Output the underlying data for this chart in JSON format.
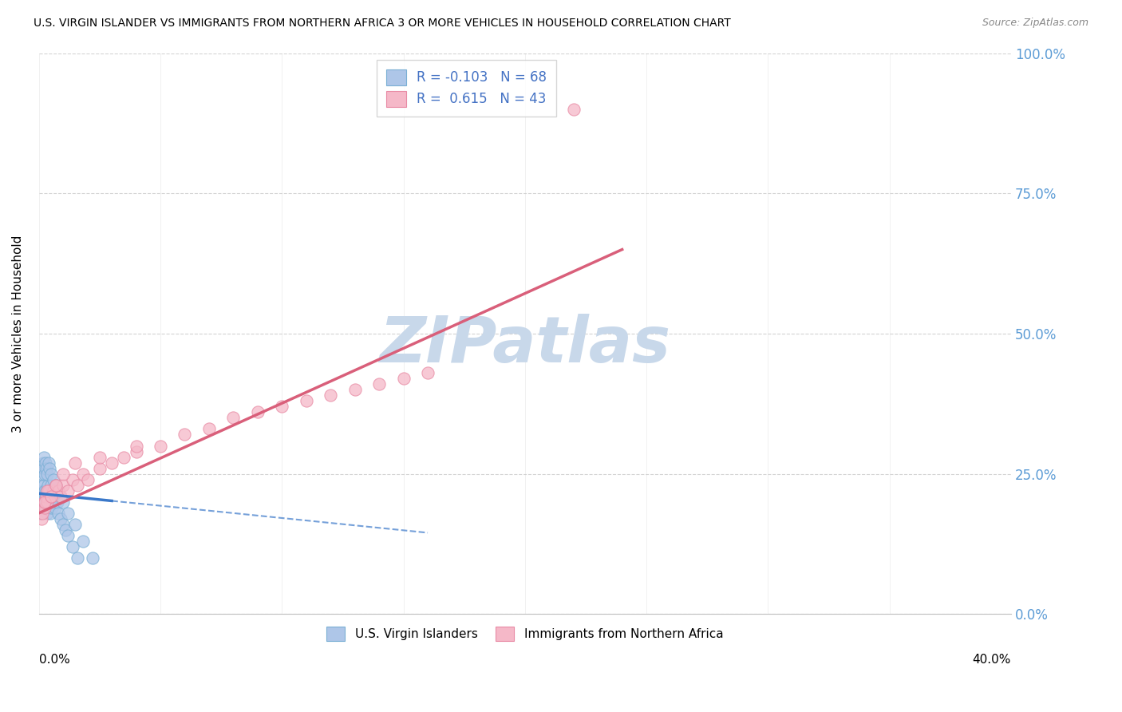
{
  "title": "U.S. VIRGIN ISLANDER VS IMMIGRANTS FROM NORTHERN AFRICA 3 OR MORE VEHICLES IN HOUSEHOLD CORRELATION CHART",
  "source": "Source: ZipAtlas.com",
  "ylabel_label": "3 or more Vehicles in Household",
  "legend_labels": [
    "U.S. Virgin Islanders",
    "Immigrants from Northern Africa"
  ],
  "R_blue": -0.103,
  "N_blue": 68,
  "R_pink": 0.615,
  "N_pink": 43,
  "blue_color": "#aec6e8",
  "pink_color": "#f5b8c8",
  "blue_edge": "#7aafd4",
  "pink_edge": "#e88aa4",
  "trend_blue_color": "#3a78c9",
  "trend_pink_color": "#d95f7a",
  "watermark": "ZIPatlas",
  "watermark_color": "#c8d8ea",
  "xmin": 0.0,
  "xmax": 40.0,
  "ymin": 0.0,
  "ymax": 100.0,
  "blue_x": [
    0.05,
    0.08,
    0.1,
    0.12,
    0.15,
    0.15,
    0.18,
    0.2,
    0.2,
    0.22,
    0.22,
    0.25,
    0.25,
    0.28,
    0.28,
    0.3,
    0.3,
    0.32,
    0.32,
    0.35,
    0.35,
    0.38,
    0.38,
    0.4,
    0.4,
    0.42,
    0.42,
    0.45,
    0.45,
    0.48,
    0.48,
    0.5,
    0.5,
    0.52,
    0.55,
    0.55,
    0.58,
    0.6,
    0.65,
    0.7,
    0.75,
    0.8,
    0.9,
    1.0,
    1.1,
    1.2,
    1.4,
    1.6,
    0.15,
    0.18,
    0.2,
    0.22,
    0.25,
    0.28,
    0.3,
    0.35,
    0.4,
    0.45,
    0.5,
    0.6,
    0.7,
    0.8,
    0.9,
    1.0,
    1.2,
    1.5,
    1.8,
    2.2
  ],
  "blue_y": [
    18,
    20,
    22,
    19,
    21,
    23,
    20,
    22,
    19,
    21,
    23,
    20,
    22,
    19,
    21,
    20,
    22,
    19,
    21,
    20,
    18,
    21,
    23,
    19,
    22,
    20,
    21,
    19,
    22,
    20,
    18,
    21,
    23,
    20,
    19,
    22,
    21,
    20,
    19,
    22,
    20,
    18,
    17,
    16,
    15,
    14,
    12,
    10,
    25,
    27,
    26,
    28,
    25,
    27,
    26,
    25,
    27,
    26,
    25,
    24,
    23,
    22,
    21,
    20,
    18,
    16,
    13,
    10
  ],
  "pink_x": [
    0.1,
    0.15,
    0.2,
    0.25,
    0.3,
    0.35,
    0.4,
    0.5,
    0.6,
    0.7,
    0.8,
    0.9,
    1.0,
    1.2,
    1.4,
    1.6,
    1.8,
    2.0,
    2.5,
    3.0,
    3.5,
    4.0,
    5.0,
    6.0,
    7.0,
    8.0,
    9.0,
    10.0,
    11.0,
    12.0,
    13.0,
    14.0,
    15.0,
    16.0,
    0.25,
    0.35,
    0.5,
    0.7,
    1.0,
    1.5,
    2.5,
    4.0,
    22.0
  ],
  "pink_y": [
    17,
    18,
    20,
    19,
    21,
    20,
    22,
    21,
    22,
    23,
    22,
    21,
    23,
    22,
    24,
    23,
    25,
    24,
    26,
    27,
    28,
    29,
    30,
    32,
    33,
    35,
    36,
    37,
    38,
    39,
    40,
    41,
    42,
    43,
    20,
    22,
    21,
    23,
    25,
    27,
    28,
    30,
    90
  ],
  "blue_trend_x0": 0.0,
  "blue_trend_y0": 21.5,
  "blue_trend_x1": 16.0,
  "blue_trend_y1": 14.5,
  "pink_trend_x0": 0.0,
  "pink_trend_y0": 18.0,
  "pink_trend_x1": 24.0,
  "pink_trend_y1": 65.0,
  "blue_solid_x1": 3.0,
  "ytick_labels": [
    "0.0%",
    "25.0%",
    "50.0%",
    "75.0%",
    "100.0%"
  ],
  "ytick_values": [
    0,
    25,
    50,
    75,
    100
  ]
}
